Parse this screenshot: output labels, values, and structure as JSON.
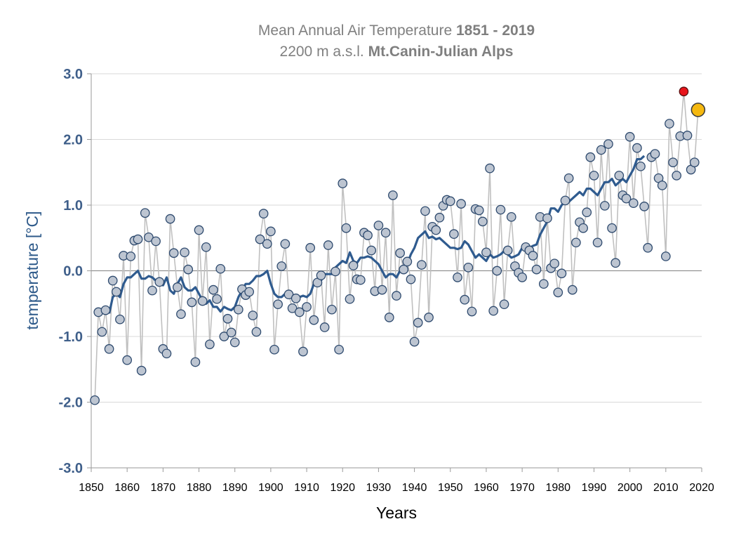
{
  "chart_data": {
    "type": "line",
    "title_line1_regular": "Mean Annual Air Temperature ",
    "title_line1_bold": "1851 - 2019",
    "title_line2_regular": "2200 m a.s.l. ",
    "title_line2_bold": "Mt.Canin-Julian Alps",
    "xlabel": "Years",
    "ylabel": "temperature [°C]",
    "xlim": [
      1850,
      2020
    ],
    "ylim": [
      -3.0,
      3.0
    ],
    "x_ticks": [
      "1850",
      "1860",
      "1870",
      "1880",
      "1890",
      "1900",
      "1910",
      "1920",
      "1930",
      "1940",
      "1950",
      "1960",
      "1970",
      "1980",
      "1990",
      "2000",
      "2010",
      "2020"
    ],
    "y_ticks": [
      "3.0",
      "2.0",
      "1.0",
      "0.0",
      "-1.0",
      "-2.0",
      "-3.0"
    ],
    "grid": "horizontal",
    "colors": {
      "annual_line": "#c0c0c0",
      "annual_marker_fill": "#bdc5d1",
      "annual_marker_edge": "#2e4a6e",
      "smooth_line": "#2f5b8f",
      "highlight_red": "#e8151b",
      "highlight_yellow": "#f5b80f",
      "grid": "#d9d9d9",
      "zero_line": "#808080"
    },
    "series": [
      {
        "role": "annual",
        "start_year": 1851,
        "values": [
          -1.97,
          -0.63,
          -0.93,
          -0.6,
          -1.19,
          -0.15,
          -0.32,
          -0.74,
          0.23,
          -1.36,
          0.22,
          0.46,
          0.48,
          -1.52,
          0.88,
          0.51,
          -0.3,
          0.45,
          -0.17,
          -1.19,
          -1.26,
          0.79,
          0.27,
          -0.25,
          -0.66,
          0.28,
          0.02,
          -0.48,
          -1.39,
          0.62,
          -0.46,
          0.36,
          -1.12,
          -0.29,
          -0.43,
          0.03,
          -1.0,
          -0.73,
          -0.94,
          -1.09,
          -0.59,
          -0.28,
          -0.37,
          -0.32,
          -0.68,
          -0.93,
          0.48,
          0.87,
          0.41,
          0.6,
          -1.2,
          -0.51,
          0.07,
          0.41,
          -0.36,
          -0.57,
          -0.42,
          -0.63,
          -1.23,
          -0.55,
          0.35,
          -0.75,
          -0.18,
          -0.07,
          -0.86,
          0.39,
          -0.59,
          -0.01,
          -1.2,
          1.33,
          0.65,
          -0.43,
          0.08,
          -0.13,
          -0.14,
          0.58,
          0.54,
          0.31,
          -0.31,
          0.69,
          -0.29,
          0.58,
          -0.71,
          1.15,
          -0.38,
          0.27,
          0.02,
          0.14,
          -0.13,
          -1.08,
          -0.79,
          0.09,
          0.91,
          -0.71,
          0.67,
          0.62,
          0.81,
          0.99,
          1.08,
          1.06,
          0.56,
          -0.1,
          1.02,
          -0.44,
          0.05,
          -0.62,
          0.94,
          0.92,
          0.75,
          0.28,
          1.56,
          -0.61,
          0.0,
          0.93,
          -0.51,
          0.31,
          0.82,
          0.07,
          -0.03,
          -0.1,
          0.36,
          0.31,
          0.23,
          0.02,
          0.82,
          -0.2,
          0.8,
          0.04,
          0.11,
          -0.33,
          -0.04,
          1.07,
          1.41,
          -0.29,
          0.43,
          0.74,
          0.65,
          0.89,
          1.73,
          1.45,
          0.43,
          1.84,
          0.99,
          1.93,
          0.65,
          0.12,
          1.45,
          1.15,
          1.1,
          2.04,
          1.03,
          1.87,
          1.59,
          0.98,
          0.35,
          1.73,
          1.78,
          1.41,
          1.3,
          0.22,
          2.24,
          1.65,
          1.45,
          2.05,
          2.73,
          2.06,
          1.54,
          1.65,
          2.45
        ]
      },
      {
        "role": "moving_average",
        "start_year": 1855,
        "values": [
          -0.65,
          -0.4,
          -0.35,
          -0.4,
          -0.2,
          -0.1,
          -0.1,
          -0.05,
          0.0,
          -0.12,
          -0.12,
          -0.08,
          -0.1,
          -0.15,
          -0.2,
          -0.22,
          -0.1,
          -0.3,
          -0.35,
          -0.2,
          -0.1,
          -0.25,
          -0.3,
          -0.3,
          -0.25,
          -0.35,
          -0.45,
          -0.5,
          -0.45,
          -0.55,
          -0.55,
          -0.62,
          -0.55,
          -0.58,
          -0.6,
          -0.55,
          -0.4,
          -0.3,
          -0.2,
          -0.2,
          -0.15,
          -0.08,
          -0.08,
          -0.05,
          0.0,
          -0.2,
          -0.35,
          -0.4,
          -0.4,
          -0.35,
          -0.38,
          -0.42,
          -0.45,
          -0.4,
          -0.38,
          -0.4,
          -0.35,
          -0.2,
          -0.15,
          -0.15,
          -0.05,
          -0.05,
          -0.05,
          0.05,
          0.1,
          0.15,
          0.12,
          0.28,
          0.15,
          0.12,
          0.2,
          0.2,
          0.22,
          0.2,
          0.15,
          0.1,
          0.0,
          -0.1,
          -0.05,
          -0.05,
          -0.1,
          0.0,
          0.05,
          0.1,
          0.25,
          0.35,
          0.5,
          0.55,
          0.6,
          0.5,
          0.52,
          0.48,
          0.5,
          0.45,
          0.4,
          0.35,
          0.35,
          0.33,
          0.35,
          0.45,
          0.4,
          0.3,
          0.2,
          0.25,
          0.2,
          0.15,
          0.25,
          0.2,
          0.22,
          0.25,
          0.3,
          0.25,
          0.2,
          0.22,
          0.25,
          0.35,
          0.3,
          0.35,
          0.38,
          0.4,
          0.55,
          0.65,
          0.75,
          0.95,
          0.95,
          0.9,
          1.0,
          1.05,
          1.05,
          1.1,
          1.15,
          1.2,
          1.15,
          1.25,
          1.25,
          1.2,
          1.15,
          1.25,
          1.35,
          1.35,
          1.4,
          1.3,
          1.35,
          1.4,
          1.35,
          1.45,
          1.55,
          1.7,
          1.7,
          1.75
        ]
      },
      {
        "role": "highlight_red",
        "x": 2015,
        "y": 2.73
      },
      {
        "role": "highlight_yellow",
        "x": 2019,
        "y": 2.45
      }
    ]
  }
}
